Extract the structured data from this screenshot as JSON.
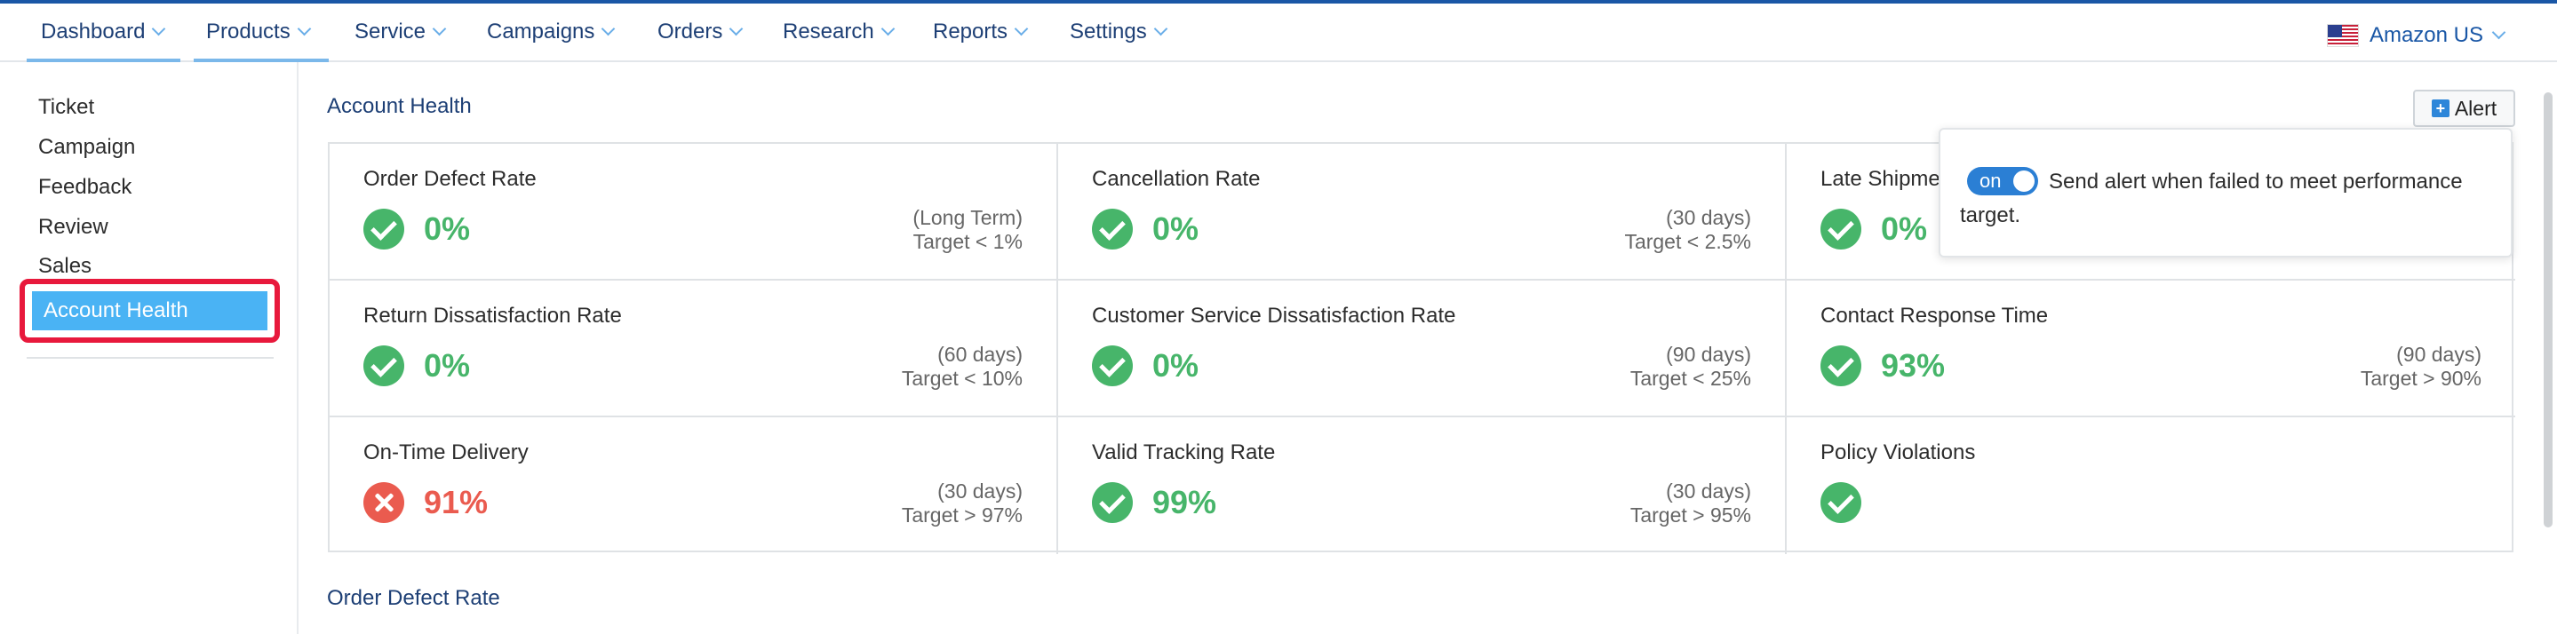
{
  "nav": {
    "items": [
      "Dashboard",
      "Products",
      "Service",
      "Campaigns",
      "Orders",
      "Research",
      "Reports",
      "Settings"
    ],
    "marketplace": "Amazon US"
  },
  "sidebar": {
    "items": [
      "Ticket",
      "Campaign",
      "Feedback",
      "Review",
      "Sales"
    ],
    "active": "Account Health"
  },
  "main": {
    "title": "Account Health",
    "alert_button": "Alert",
    "section2_title": "Order Defect Rate"
  },
  "popover": {
    "toggle_label": "on",
    "message": "Send alert when failed to meet performance target."
  },
  "metrics": [
    {
      "label": "Order Defect Rate",
      "value": "0%",
      "status": "ok",
      "period": "(Long Term)",
      "target": "Target < 1%"
    },
    {
      "label": "Cancellation Rate",
      "value": "0%",
      "status": "ok",
      "period": "(30 days)",
      "target": "Target < 2.5%"
    },
    {
      "label": "Late Shipment Rate",
      "value": "0%",
      "status": "ok",
      "period": "",
      "target": ""
    },
    {
      "label": "Return Dissatisfaction Rate",
      "value": "0%",
      "status": "ok",
      "period": "(60 days)",
      "target": "Target < 10%"
    },
    {
      "label": "Customer Service Dissatisfaction Rate",
      "value": "0%",
      "status": "ok",
      "period": "(90 days)",
      "target": "Target < 25%"
    },
    {
      "label": "Contact Response Time",
      "value": "93%",
      "status": "ok",
      "period": "(90 days)",
      "target": "Target > 90%"
    },
    {
      "label": "On-Time Delivery",
      "value": "91%",
      "status": "fail",
      "period": "(30 days)",
      "target": "Target > 97%"
    },
    {
      "label": "Valid Tracking Rate",
      "value": "99%",
      "status": "ok",
      "period": "(30 days)",
      "target": "Target > 95%"
    },
    {
      "label": "Policy Violations",
      "value": "",
      "status": "ok",
      "period": "",
      "target": ""
    }
  ],
  "colors": {
    "ok": "#47b56a",
    "fail": "#ea5b4f",
    "accent": "#1a57a6",
    "active_sidebar": "#4ab3f4",
    "highlight": "#e8193c"
  }
}
